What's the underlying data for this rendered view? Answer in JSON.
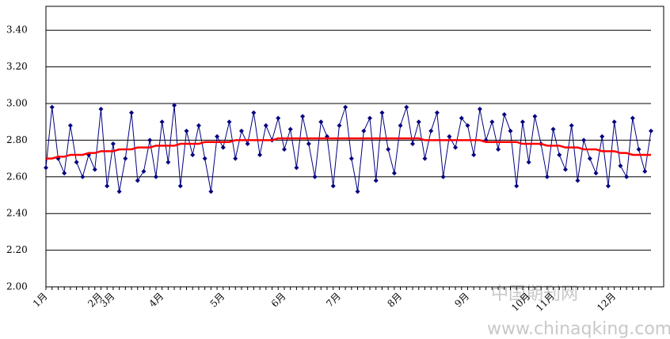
{
  "chart_data": {
    "type": "line",
    "categories": [
      "1月",
      null,
      null,
      null,
      null,
      null,
      null,
      null,
      null,
      "2月",
      null,
      "3月",
      null,
      null,
      null,
      null,
      null,
      null,
      null,
      "4月",
      null,
      null,
      null,
      null,
      null,
      null,
      null,
      null,
      null,
      "5月",
      null,
      null,
      null,
      null,
      null,
      null,
      null,
      null,
      null,
      "6月",
      null,
      null,
      null,
      null,
      null,
      null,
      null,
      null,
      "7月",
      null,
      null,
      null,
      null,
      null,
      null,
      null,
      null,
      null,
      "8月",
      null,
      null,
      null,
      null,
      null,
      null,
      null,
      null,
      null,
      null,
      "9月",
      null,
      null,
      null,
      null,
      null,
      null,
      null,
      null,
      null,
      "10月",
      null,
      null,
      null,
      "11月",
      null,
      null,
      null,
      null,
      null,
      null,
      null,
      null,
      null,
      "12月",
      null,
      null,
      null,
      null,
      null,
      null
    ],
    "series": [
      {
        "color": "#000080",
        "marker": "diamond",
        "values": [
          2.65,
          2.98,
          2.7,
          2.62,
          2.88,
          2.68,
          2.6,
          2.72,
          2.64,
          2.97,
          2.55,
          2.78,
          2.52,
          2.7,
          2.95,
          2.58,
          2.63,
          2.8,
          2.6,
          2.9,
          2.68,
          2.99,
          2.55,
          2.85,
          2.72,
          2.88,
          2.7,
          2.52,
          2.82,
          2.76,
          2.9,
          2.7,
          2.85,
          2.78,
          2.95,
          2.72,
          2.88,
          2.8,
          2.92,
          2.75,
          2.86,
          2.65,
          2.93,
          2.78,
          2.6,
          2.9,
          2.82,
          2.55,
          2.88,
          2.98,
          2.7,
          2.52,
          2.85,
          2.92,
          2.58,
          2.95,
          2.75,
          2.62,
          2.88,
          2.98,
          2.78,
          2.9,
          2.7,
          2.85,
          2.95,
          2.6,
          2.82,
          2.76,
          2.92,
          2.88,
          2.72,
          2.97,
          2.8,
          2.9,
          2.75,
          2.94,
          2.85,
          2.55,
          2.9,
          2.68,
          2.93,
          2.78,
          2.6,
          2.86,
          2.72,
          2.64,
          2.88,
          2.58,
          2.8,
          2.7,
          2.62,
          2.82,
          2.55,
          2.9,
          2.66,
          2.6,
          2.92,
          2.75,
          2.63,
          2.85
        ]
      },
      {
        "color": "#ff0000",
        "marker": "none",
        "values": [
          2.7,
          2.7,
          2.71,
          2.71,
          2.72,
          2.72,
          2.72,
          2.73,
          2.73,
          2.74,
          2.74,
          2.74,
          2.75,
          2.75,
          2.75,
          2.76,
          2.76,
          2.76,
          2.77,
          2.77,
          2.77,
          2.77,
          2.78,
          2.78,
          2.78,
          2.78,
          2.79,
          2.79,
          2.79,
          2.79,
          2.79,
          2.8,
          2.8,
          2.8,
          2.8,
          2.8,
          2.8,
          2.8,
          2.81,
          2.81,
          2.81,
          2.81,
          2.81,
          2.81,
          2.81,
          2.81,
          2.81,
          2.81,
          2.81,
          2.81,
          2.81,
          2.81,
          2.81,
          2.81,
          2.81,
          2.81,
          2.81,
          2.81,
          2.81,
          2.81,
          2.81,
          2.81,
          2.8,
          2.8,
          2.8,
          2.8,
          2.8,
          2.8,
          2.8,
          2.8,
          2.8,
          2.8,
          2.79,
          2.79,
          2.79,
          2.79,
          2.79,
          2.79,
          2.78,
          2.78,
          2.78,
          2.78,
          2.77,
          2.77,
          2.77,
          2.76,
          2.76,
          2.76,
          2.75,
          2.75,
          2.75,
          2.74,
          2.74,
          2.74,
          2.73,
          2.73,
          2.72,
          2.72,
          2.72,
          2.72
        ]
      }
    ],
    "ylim": [
      2.0,
      3.5
    ],
    "yticks": [
      {
        "value": 2.0,
        "label": "2.00"
      },
      {
        "value": 2.2,
        "label": "2.20"
      },
      {
        "value": 2.4,
        "label": "2.40"
      },
      {
        "value": 2.6,
        "label": "2.60"
      },
      {
        "value": 2.8,
        "label": "2.80"
      },
      {
        "value": 3.0,
        "label": "3.00"
      },
      {
        "value": 3.2,
        "label": "3.20"
      },
      {
        "value": 3.4,
        "label": "3.40"
      }
    ],
    "grid": true,
    "watermark": [
      "中国期刊网",
      "www.chinaqking.com"
    ]
  }
}
